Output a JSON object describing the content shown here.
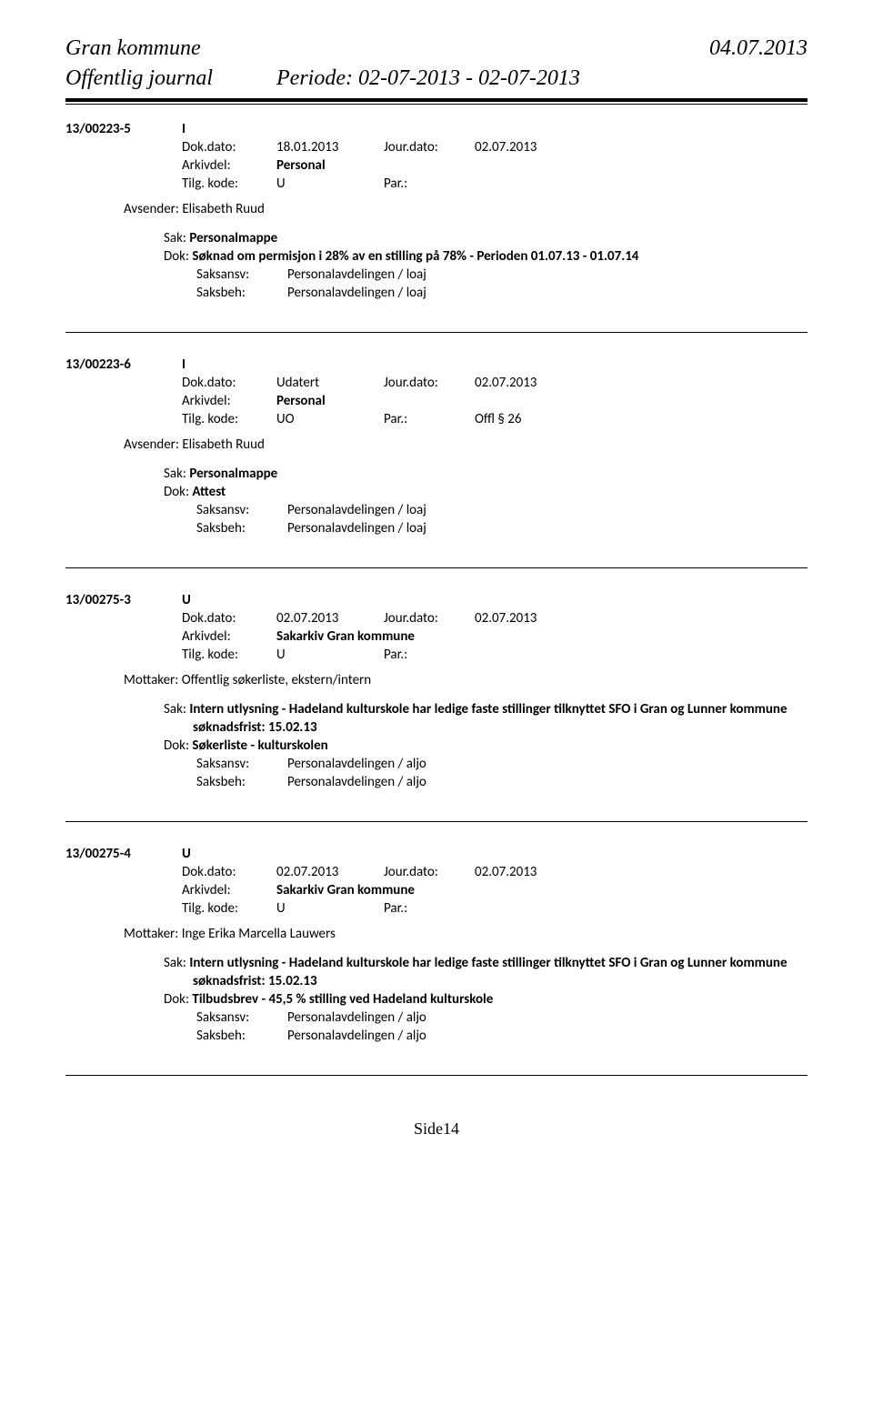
{
  "header": {
    "org": "Gran kommune",
    "date": "04.07.2013",
    "journal_title": "Offentlig journal",
    "period_label": "Periode: 02-07-2013 - 02-07-2013"
  },
  "entries": [
    {
      "case_no": "13/00223-5",
      "io": "I",
      "dokdato_label": "Dok.dato:",
      "dokdato": "18.01.2013",
      "jourdato_label": "Jour.dato:",
      "jourdato": "02.07.2013",
      "arkivdel_label": "Arkivdel:",
      "arkivdel": "Personal",
      "tilg_label": "Tilg. kode:",
      "tilg": "U",
      "par_label": "Par.:",
      "par": "",
      "party_label": "Avsender:",
      "party": "Elisabeth Ruud",
      "sak_label": "Sak:",
      "sak": "Personalmappe",
      "dok_label": "Dok:",
      "dok": "Søknad om permisjon i 28% av en stilling på 78% - Perioden 01.07.13 - 01.07.14",
      "dok_extra": "",
      "saksansv_label": "Saksansv:",
      "saksansv": "Personalavdelingen / loaj",
      "saksbeh_label": "Saksbeh:",
      "saksbeh": "Personalavdelingen / loaj"
    },
    {
      "case_no": "13/00223-6",
      "io": "I",
      "dokdato_label": "Dok.dato:",
      "dokdato": "Udatert",
      "jourdato_label": "Jour.dato:",
      "jourdato": "02.07.2013",
      "arkivdel_label": "Arkivdel:",
      "arkivdel": "Personal",
      "tilg_label": "Tilg. kode:",
      "tilg": "UO",
      "par_label": "Par.:",
      "par": "Offl § 26",
      "party_label": "Avsender:",
      "party": "Elisabeth Ruud",
      "sak_label": "Sak:",
      "sak": "Personalmappe",
      "dok_label": "Dok:",
      "dok": "Attest",
      "dok_extra": "",
      "saksansv_label": "Saksansv:",
      "saksansv": "Personalavdelingen / loaj",
      "saksbeh_label": "Saksbeh:",
      "saksbeh": "Personalavdelingen / loaj"
    },
    {
      "case_no": "13/00275-3",
      "io": "U",
      "dokdato_label": "Dok.dato:",
      "dokdato": "02.07.2013",
      "jourdato_label": "Jour.dato:",
      "jourdato": "02.07.2013",
      "arkivdel_label": "Arkivdel:",
      "arkivdel": "Sakarkiv Gran kommune",
      "tilg_label": "Tilg. kode:",
      "tilg": "U",
      "par_label": "Par.:",
      "par": "",
      "party_label": "Mottaker:",
      "party": "Offentlig søkerliste, ekstern/intern",
      "sak_label": "Sak:",
      "sak": "Intern utlysning - Hadeland kulturskole har ledige faste stillinger tilknyttet SFO i Gran og Lunner kommune",
      "sak_extra": "søknadsfrist: 15.02.13",
      "dok_label": "Dok:",
      "dok": "Søkerliste - kulturskolen",
      "dok_extra": "",
      "saksansv_label": "Saksansv:",
      "saksansv": "Personalavdelingen / aljo",
      "saksbeh_label": "Saksbeh:",
      "saksbeh": "Personalavdelingen / aljo"
    },
    {
      "case_no": "13/00275-4",
      "io": "U",
      "dokdato_label": "Dok.dato:",
      "dokdato": "02.07.2013",
      "jourdato_label": "Jour.dato:",
      "jourdato": "02.07.2013",
      "arkivdel_label": "Arkivdel:",
      "arkivdel": "Sakarkiv Gran kommune",
      "tilg_label": "Tilg. kode:",
      "tilg": "U",
      "par_label": "Par.:",
      "par": "",
      "party_label": "Mottaker:",
      "party": "Inge Erika Marcella Lauwers",
      "sak_label": "Sak:",
      "sak": "Intern utlysning - Hadeland kulturskole har ledige faste stillinger tilknyttet SFO i Gran og Lunner kommune",
      "sak_extra": "søknadsfrist: 15.02.13",
      "dok_label": "Dok:",
      "dok": "Tilbudsbrev - 45,5 % stilling ved Hadeland kulturskole",
      "dok_extra": "",
      "saksansv_label": "Saksansv:",
      "saksansv": "Personalavdelingen / aljo",
      "saksbeh_label": "Saksbeh:",
      "saksbeh": "Personalavdelingen / aljo"
    }
  ],
  "page_no": "Side14"
}
